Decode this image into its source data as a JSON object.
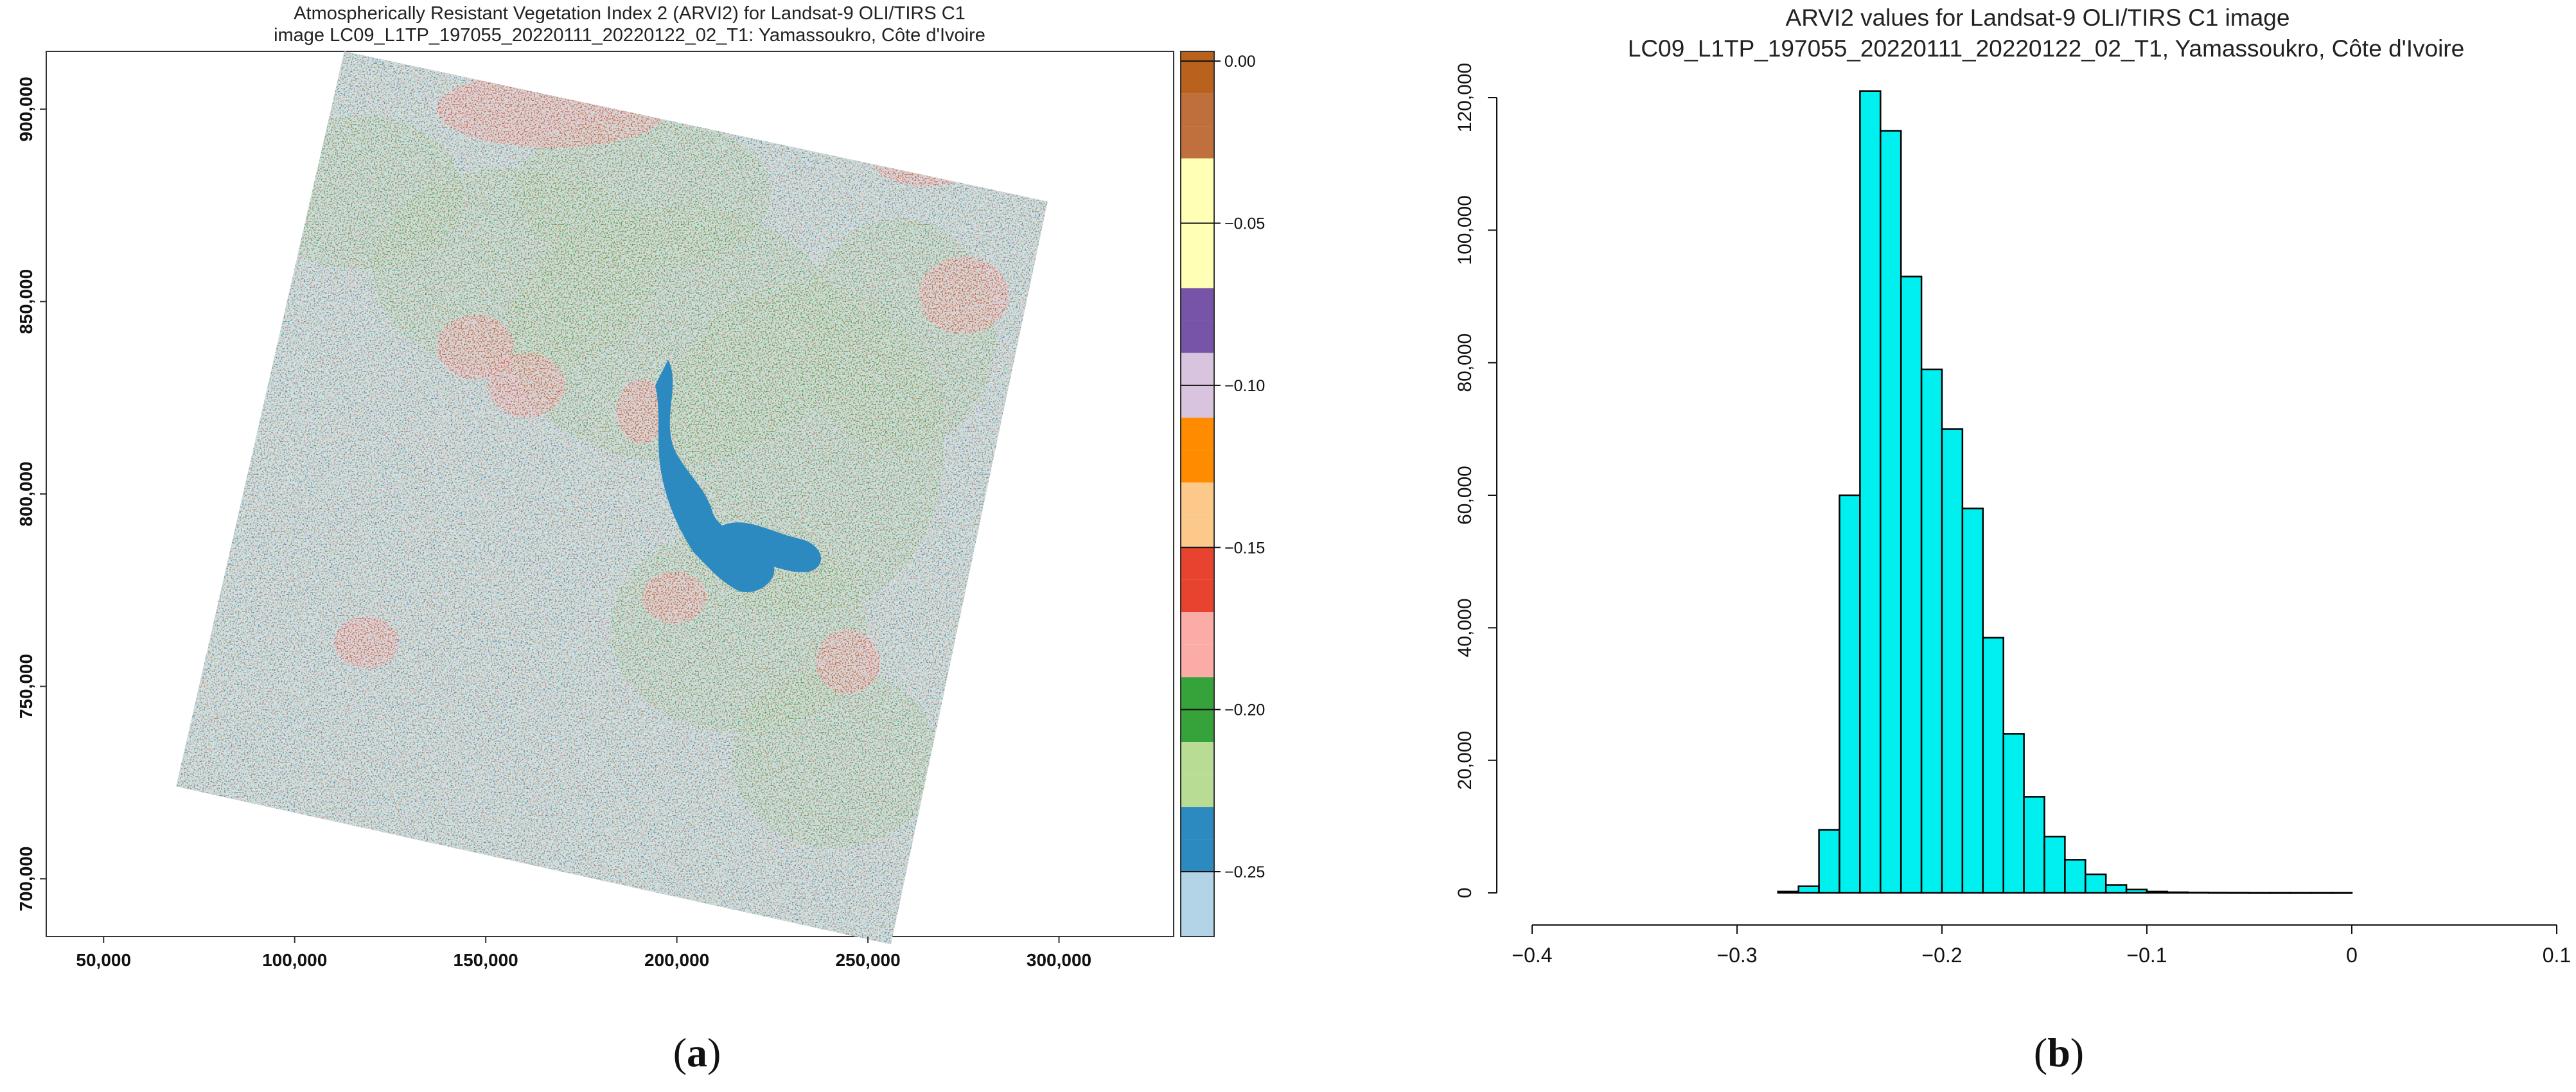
{
  "panels": {
    "a": {
      "label": "(a)",
      "label_parts": {
        "open": "(",
        "letter": "a",
        "close": ")"
      },
      "title_line1": "Atmospherically Resistant Vegetation Index 2 (ARVI2) for Landsat-9 OLI/TIRS C1",
      "title_line2": "image LC09_L1TP_197055_20220111_20220122_02_T1: Yamassoukro, Côte d'Ivoire"
    },
    "b": {
      "label": "(b)",
      "label_parts": {
        "open": "(",
        "letter": "b",
        "close": ")"
      },
      "title_line1": "ARVI2 values for Landsat-9 OLI/TIRS C1 image",
      "title_line2": "LC09_L1TP_197055_20220111_20220122_02_T1, Yamassoukro, Côte d'Ivoire"
    }
  },
  "colors": {
    "histogram_fill": "#00f0f0",
    "histogram_stroke": "#000000",
    "frame": "#333333",
    "water": "#2c8ac0",
    "light_green": "#b8dc94",
    "green": "#35a33a",
    "red": "#e8432e",
    "light_blue": "#b3d4e6"
  },
  "chart_data": [
    {
      "type": "heatmap",
      "description_panel": "a",
      "x_ticks": [
        "50,000",
        "100,000",
        "150,000",
        "200,000",
        "250,000",
        "300,000"
      ],
      "x_tick_values": [
        50000,
        100000,
        150000,
        200000,
        250000,
        300000
      ],
      "y_ticks": [
        "700,000",
        "750,000",
        "800,000",
        "850,000",
        "900,000"
      ],
      "y_tick_values": [
        700000,
        750000,
        800000,
        850000,
        900000
      ],
      "xlim": [
        35000,
        330000
      ],
      "ylim": [
        685000,
        915000
      ],
      "footprint_corners": [
        [
          113000,
          915000
        ],
        [
          297000,
          876000
        ],
        [
          256000,
          683000
        ],
        [
          69000,
          724000
        ]
      ],
      "legend": {
        "breaks": [
          0.01,
          0.0,
          -0.01,
          -0.02,
          -0.03,
          -0.04,
          -0.05,
          -0.06,
          -0.07,
          -0.08,
          -0.09,
          -0.1,
          -0.11,
          -0.12,
          -0.13,
          -0.14,
          -0.15,
          -0.16,
          -0.17,
          -0.18,
          -0.19,
          -0.2,
          -0.21,
          -0.22,
          -0.23,
          -0.24,
          -0.25,
          -0.26,
          -0.27,
          -0.28
        ],
        "class_colors": [
          "#b8621e",
          "#b8621e",
          "#bf6f3c",
          "#c0703c",
          "#ffffb6",
          "#ffffb6",
          "#ffffb6",
          "#ffffb6",
          "#7754a8",
          "#7754a8",
          "#d8c4de",
          "#d8c4de",
          "#ff8c00",
          "#ff8c00",
          "#fcc98a",
          "#fcc98a",
          "#e8432e",
          "#e8432e",
          "#fbaca6",
          "#fbaca6",
          "#35a33a",
          "#35a33a",
          "#b8dc94",
          "#b8dc94",
          "#2c8ac0",
          "#2c8ac0",
          "#b3d4e6",
          "#b3d4e6",
          "#b3d4e6"
        ],
        "tick_labels": [
          "0.00",
          "−0.05",
          "−0.10",
          "−0.15",
          "−0.20",
          "−0.25"
        ],
        "tick_values": [
          0.0,
          -0.05,
          -0.1,
          -0.15,
          -0.2,
          -0.25
        ],
        "range": [
          -0.27,
          0.003
        ]
      }
    },
    {
      "type": "bar",
      "description_panel": "b",
      "bin_width": 0.01,
      "bin_starts": [
        -0.28,
        -0.27,
        -0.26,
        -0.25,
        -0.24,
        -0.23,
        -0.22,
        -0.21,
        -0.2,
        -0.19,
        -0.18,
        -0.17,
        -0.16,
        -0.15,
        -0.14,
        -0.13,
        -0.12,
        -0.11,
        -0.1,
        -0.09,
        -0.08,
        -0.07,
        -0.06,
        -0.05,
        -0.04,
        -0.03,
        -0.02,
        -0.01
      ],
      "values": [
        200,
        1000,
        9500,
        60000,
        121000,
        115000,
        93000,
        79000,
        70000,
        58000,
        38500,
        24000,
        14500,
        8500,
        5000,
        2800,
        1200,
        500,
        200,
        100,
        50,
        30,
        20,
        10,
        10,
        5,
        5,
        5
      ],
      "x_ticks": [
        "−0.4",
        "−0.3",
        "−0.2",
        "−0.1",
        "0",
        "0.1"
      ],
      "x_tick_values": [
        -0.4,
        -0.3,
        -0.2,
        -0.1,
        0.0,
        0.1
      ],
      "y_ticks": [
        "0",
        "20,000",
        "40,000",
        "60,000",
        "80,000",
        "100,000",
        "120,000"
      ],
      "y_tick_values": [
        0,
        20000,
        40000,
        60000,
        80000,
        100000,
        120000
      ],
      "xlim": [
        -0.4,
        0.1
      ],
      "ylim": [
        0,
        120000
      ]
    }
  ]
}
